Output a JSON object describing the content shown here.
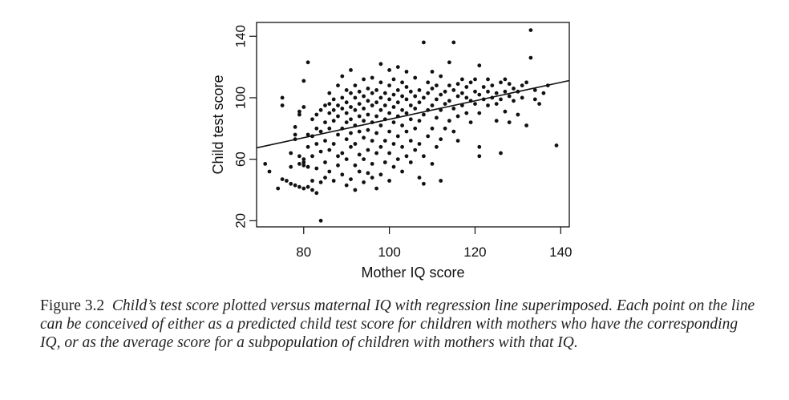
{
  "chart_data": {
    "type": "scatter",
    "xlabel": "Mother IQ score",
    "ylabel": "Child test score",
    "xlim": [
      69,
      142
    ],
    "ylim": [
      16,
      149
    ],
    "xticks": [
      80,
      100,
      120,
      140
    ],
    "yticks": [
      20,
      60,
      100,
      140
    ],
    "grid": false,
    "regression_line": {
      "intercept": 26,
      "slope": 0.6
    },
    "points": [
      [
        71,
        57
      ],
      [
        72,
        52
      ],
      [
        74,
        41
      ],
      [
        75,
        47
      ],
      [
        75,
        100
      ],
      [
        75,
        95
      ],
      [
        76,
        46
      ],
      [
        77,
        44
      ],
      [
        77,
        55
      ],
      [
        77,
        64
      ],
      [
        78,
        73
      ],
      [
        78,
        43
      ],
      [
        78,
        81
      ],
      [
        78,
        76
      ],
      [
        79,
        42
      ],
      [
        79,
        57
      ],
      [
        79,
        62
      ],
      [
        79,
        89
      ],
      [
        79,
        91
      ],
      [
        80,
        41
      ],
      [
        80,
        56
      ],
      [
        80,
        58
      ],
      [
        80,
        60
      ],
      [
        80,
        94
      ],
      [
        80,
        111
      ],
      [
        81,
        42
      ],
      [
        81,
        68
      ],
      [
        81,
        76
      ],
      [
        81,
        55
      ],
      [
        81,
        123
      ],
      [
        82,
        40
      ],
      [
        82,
        46
      ],
      [
        82,
        62
      ],
      [
        82,
        75
      ],
      [
        82,
        86
      ],
      [
        83,
        38
      ],
      [
        83,
        54
      ],
      [
        83,
        70
      ],
      [
        83,
        80
      ],
      [
        83,
        89
      ],
      [
        84,
        20
      ],
      [
        84,
        45
      ],
      [
        84,
        65
      ],
      [
        84,
        78
      ],
      [
        84,
        92
      ],
      [
        85,
        48
      ],
      [
        85,
        58
      ],
      [
        85,
        72
      ],
      [
        85,
        84
      ],
      [
        85,
        95
      ],
      [
        86,
        52
      ],
      [
        86,
        66
      ],
      [
        86,
        80
      ],
      [
        86,
        90
      ],
      [
        86,
        96
      ],
      [
        86,
        103
      ],
      [
        87,
        46
      ],
      [
        87,
        70
      ],
      [
        87,
        85
      ],
      [
        87,
        92
      ],
      [
        87,
        99
      ],
      [
        88,
        56
      ],
      [
        88,
        62
      ],
      [
        88,
        76
      ],
      [
        88,
        88
      ],
      [
        88,
        95
      ],
      [
        88,
        108
      ],
      [
        89,
        50
      ],
      [
        89,
        64
      ],
      [
        89,
        80
      ],
      [
        89,
        93
      ],
      [
        89,
        100
      ],
      [
        89,
        114
      ],
      [
        90,
        43
      ],
      [
        90,
        60
      ],
      [
        90,
        73
      ],
      [
        90,
        84
      ],
      [
        90,
        90
      ],
      [
        90,
        97
      ],
      [
        90,
        105
      ],
      [
        91,
        47
      ],
      [
        91,
        68
      ],
      [
        91,
        77
      ],
      [
        91,
        86
      ],
      [
        91,
        94
      ],
      [
        91,
        103
      ],
      [
        91,
        118
      ],
      [
        92,
        40
      ],
      [
        92,
        56
      ],
      [
        92,
        70
      ],
      [
        92,
        82
      ],
      [
        92,
        92
      ],
      [
        92,
        100
      ],
      [
        92,
        108
      ],
      [
        93,
        52
      ],
      [
        93,
        63
      ],
      [
        93,
        78
      ],
      [
        93,
        88
      ],
      [
        93,
        96
      ],
      [
        93,
        104
      ],
      [
        94,
        45
      ],
      [
        94,
        60
      ],
      [
        94,
        74
      ],
      [
        94,
        85
      ],
      [
        94,
        93
      ],
      [
        94,
        101
      ],
      [
        94,
        112
      ],
      [
        95,
        51
      ],
      [
        95,
        66
      ],
      [
        95,
        79
      ],
      [
        95,
        89
      ],
      [
        95,
        98
      ],
      [
        95,
        106
      ],
      [
        96,
        48
      ],
      [
        96,
        57
      ],
      [
        96,
        72
      ],
      [
        96,
        84
      ],
      [
        96,
        95
      ],
      [
        96,
        103
      ],
      [
        96,
        113
      ],
      [
        97,
        41
      ],
      [
        97,
        64
      ],
      [
        97,
        77
      ],
      [
        97,
        88
      ],
      [
        97,
        97
      ],
      [
        97,
        105
      ],
      [
        98,
        50
      ],
      [
        98,
        68
      ],
      [
        98,
        82
      ],
      [
        98,
        92
      ],
      [
        98,
        100
      ],
      [
        98,
        110
      ],
      [
        98,
        122
      ],
      [
        99,
        58
      ],
      [
        99,
        72
      ],
      [
        99,
        86
      ],
      [
        99,
        95
      ],
      [
        99,
        103
      ],
      [
        100,
        46
      ],
      [
        100,
        64
      ],
      [
        100,
        78
      ],
      [
        100,
        90
      ],
      [
        100,
        99
      ],
      [
        100,
        108
      ],
      [
        100,
        118
      ],
      [
        101,
        55
      ],
      [
        101,
        70
      ],
      [
        101,
        84
      ],
      [
        101,
        94
      ],
      [
        101,
        102
      ],
      [
        101,
        112
      ],
      [
        102,
        60
      ],
      [
        102,
        75
      ],
      [
        102,
        88
      ],
      [
        102,
        97
      ],
      [
        102,
        105
      ],
      [
        102,
        120
      ],
      [
        103,
        52
      ],
      [
        103,
        68
      ],
      [
        103,
        82
      ],
      [
        103,
        92
      ],
      [
        103,
        101
      ],
      [
        103,
        110
      ],
      [
        104,
        62
      ],
      [
        104,
        78
      ],
      [
        104,
        90
      ],
      [
        104,
        99
      ],
      [
        104,
        107
      ],
      [
        104,
        117
      ],
      [
        105,
        58
      ],
      [
        105,
        72
      ],
      [
        105,
        86
      ],
      [
        105,
        95
      ],
      [
        105,
        104
      ],
      [
        106,
        66
      ],
      [
        106,
        80
      ],
      [
        106,
        93
      ],
      [
        106,
        101
      ],
      [
        106,
        113
      ],
      [
        107,
        48
      ],
      [
        107,
        70
      ],
      [
        107,
        85
      ],
      [
        107,
        97
      ],
      [
        107,
        105
      ],
      [
        108,
        44
      ],
      [
        108,
        62
      ],
      [
        108,
        89
      ],
      [
        108,
        100
      ],
      [
        108,
        136
      ],
      [
        109,
        75
      ],
      [
        109,
        92
      ],
      [
        109,
        103
      ],
      [
        109,
        110
      ],
      [
        110,
        57
      ],
      [
        110,
        80
      ],
      [
        110,
        95
      ],
      [
        110,
        106
      ],
      [
        110,
        117
      ],
      [
        111,
        68
      ],
      [
        111,
        87
      ],
      [
        111,
        99
      ],
      [
        111,
        108
      ],
      [
        112,
        46
      ],
      [
        112,
        73
      ],
      [
        112,
        92
      ],
      [
        112,
        102
      ],
      [
        112,
        114
      ],
      [
        113,
        80
      ],
      [
        113,
        96
      ],
      [
        113,
        104
      ],
      [
        114,
        85
      ],
      [
        114,
        98
      ],
      [
        114,
        108
      ],
      [
        114,
        123
      ],
      [
        115,
        78
      ],
      [
        115,
        93
      ],
      [
        115,
        105
      ],
      [
        115,
        136
      ],
      [
        116,
        72
      ],
      [
        116,
        88
      ],
      [
        116,
        101
      ],
      [
        116,
        109
      ],
      [
        117,
        95
      ],
      [
        117,
        103
      ],
      [
        117,
        112
      ],
      [
        118,
        90
      ],
      [
        118,
        100
      ],
      [
        118,
        107
      ],
      [
        119,
        84
      ],
      [
        119,
        98
      ],
      [
        119,
        110
      ],
      [
        120,
        96
      ],
      [
        120,
        104
      ],
      [
        120,
        112
      ],
      [
        121,
        62
      ],
      [
        121,
        68
      ],
      [
        121,
        90
      ],
      [
        121,
        102
      ],
      [
        121,
        121
      ],
      [
        122,
        99
      ],
      [
        122,
        107
      ],
      [
        123,
        95
      ],
      [
        123,
        104
      ],
      [
        123,
        112
      ],
      [
        124,
        100
      ],
      [
        124,
        108
      ],
      [
        125,
        85
      ],
      [
        125,
        96
      ],
      [
        125,
        103
      ],
      [
        126,
        64
      ],
      [
        126,
        99
      ],
      [
        126,
        110
      ],
      [
        127,
        91
      ],
      [
        127,
        104
      ],
      [
        127,
        112
      ],
      [
        128,
        84
      ],
      [
        128,
        101
      ],
      [
        128,
        109
      ],
      [
        129,
        98
      ],
      [
        129,
        106
      ],
      [
        130,
        89
      ],
      [
        130,
        104
      ],
      [
        131,
        100
      ],
      [
        131,
        108
      ],
      [
        132,
        82
      ],
      [
        132,
        110
      ],
      [
        133,
        144
      ],
      [
        133,
        126
      ],
      [
        134,
        105
      ],
      [
        134,
        99
      ],
      [
        135,
        96
      ],
      [
        136,
        103
      ],
      [
        137,
        108
      ],
      [
        139,
        69
      ]
    ]
  },
  "caption": {
    "label": "Figure 3.2",
    "text": "Child’s test score plotted versus maternal IQ with regression line superimposed. Each point on the line can be conceived of either as a predicted child test score for children with mothers who have the corresponding IQ, or as the average score for a subpopulation of children with mothers with that IQ."
  }
}
